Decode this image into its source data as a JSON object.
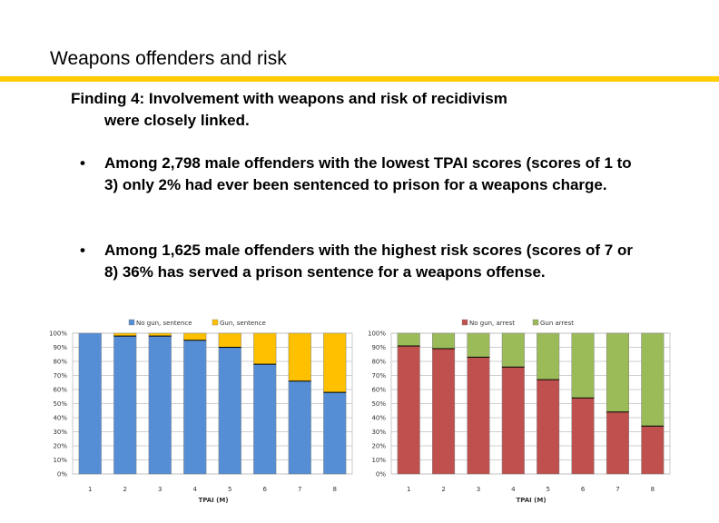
{
  "slide": {
    "title": "Weapons offenders and risk",
    "finding_line1": "Finding 4: Involvement with weapons and risk of recidivism",
    "finding_line2": "were closely linked.",
    "bullets": [
      {
        "marker": "•",
        "text": "Among 2,798 male offenders with the lowest TPAI scores (scores of 1 to 3)  only 2% had ever been sentenced to prison for a weapons charge."
      },
      {
        "marker": "•",
        "text": "Among 1,625 male offenders with the highest risk scores (scores of 7 or 8) 36% has served a prison sentence for a weapons offense."
      }
    ],
    "accent_color": "#ffcc00"
  },
  "chart_data": [
    {
      "type": "bar",
      "stacked": true,
      "title": "",
      "xlabel": "TPAI (M)",
      "ylabel": "",
      "ylim": [
        0,
        100
      ],
      "yticks": [
        "0%",
        "10%",
        "20%",
        "30%",
        "40%",
        "50%",
        "60%",
        "70%",
        "80%",
        "90%",
        "100%"
      ],
      "categories": [
        "1",
        "2",
        "3",
        "4",
        "5",
        "6",
        "7",
        "8"
      ],
      "series": [
        {
          "name": "No gun, sentence",
          "color": "#558ed5",
          "values": [
            100,
            98,
            98,
            95,
            90,
            78,
            66,
            58
          ]
        },
        {
          "name": "Gun, sentence",
          "color": "#ffc000",
          "values": [
            0,
            2,
            2,
            5,
            10,
            22,
            34,
            42
          ]
        }
      ],
      "grid": true,
      "legend": "top"
    },
    {
      "type": "bar",
      "stacked": true,
      "title": "",
      "xlabel": "TPAI (M)",
      "ylabel": "",
      "ylim": [
        0,
        100
      ],
      "yticks": [
        "0%",
        "10%",
        "20%",
        "30%",
        "40%",
        "50%",
        "60%",
        "70%",
        "80%",
        "90%",
        "100%"
      ],
      "categories": [
        "1",
        "2",
        "3",
        "4",
        "5",
        "6",
        "7",
        "8"
      ],
      "series": [
        {
          "name": "No gun, arrest",
          "color": "#c0504d",
          "values": [
            91,
            89,
            83,
            76,
            67,
            54,
            44,
            34
          ]
        },
        {
          "name": "Gun arrest",
          "color": "#9bbb59",
          "values": [
            9,
            11,
            17,
            24,
            33,
            46,
            56,
            66
          ]
        }
      ],
      "grid": true,
      "legend": "top"
    }
  ]
}
